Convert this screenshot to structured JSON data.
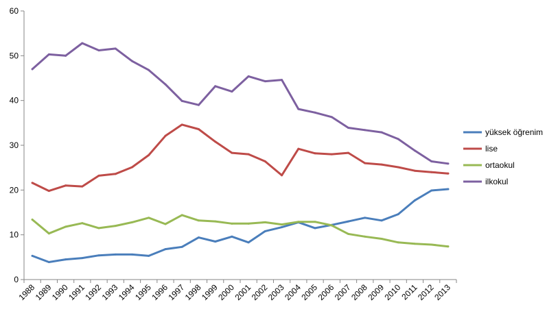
{
  "chart_data": {
    "type": "line",
    "title": "",
    "xlabel": "",
    "ylabel": "",
    "ylim": [
      0,
      60
    ],
    "yticks": [
      "0",
      "10",
      "20",
      "30",
      "40",
      "50",
      "60"
    ],
    "grid": false,
    "legend_position": "right",
    "x": [
      "1988",
      "1989",
      "1990",
      "1991",
      "1992",
      "1993",
      "1994",
      "1995",
      "1996",
      "1997",
      "1998",
      "1999",
      "2000",
      "2001",
      "2002",
      "2003",
      "2004",
      "2005",
      "2006",
      "2007",
      "2008",
      "2009",
      "2010",
      "2011",
      "2012",
      "2013"
    ],
    "series": [
      {
        "name": "yüksek öğrenim",
        "color": "#4a7ebb",
        "values": [
          5.3,
          3.9,
          4.5,
          4.8,
          5.4,
          5.6,
          5.6,
          5.3,
          6.8,
          7.3,
          9.4,
          8.5,
          9.6,
          8.3,
          10.8,
          11.7,
          12.8,
          11.5,
          12.2,
          13.0,
          13.8,
          13.2,
          14.6,
          17.7,
          19.9,
          20.2
        ]
      },
      {
        "name": "lise",
        "color": "#be4b48",
        "values": [
          21.6,
          19.8,
          21.0,
          20.8,
          23.2,
          23.6,
          25.1,
          27.8,
          32.1,
          34.6,
          33.6,
          30.8,
          28.3,
          28.0,
          26.4,
          23.3,
          29.2,
          28.2,
          28.0,
          28.3,
          26.0,
          25.7,
          25.1,
          24.3,
          24.0,
          23.7
        ]
      },
      {
        "name": "ortaokul",
        "color": "#98b954",
        "values": [
          13.4,
          10.3,
          11.8,
          12.6,
          11.5,
          12.0,
          12.8,
          13.8,
          12.4,
          14.4,
          13.2,
          13.0,
          12.5,
          12.5,
          12.8,
          12.3,
          12.9,
          12.9,
          12.1,
          10.2,
          9.6,
          9.1,
          8.3,
          8.0,
          7.8,
          7.4
        ]
      },
      {
        "name": "ilkokul",
        "color": "#7d60a0",
        "values": [
          47.0,
          50.3,
          50.0,
          52.8,
          51.2,
          51.6,
          48.8,
          46.8,
          43.6,
          39.9,
          39.0,
          43.2,
          42.0,
          45.4,
          44.3,
          44.6,
          38.1,
          37.3,
          36.3,
          33.9,
          33.4,
          32.9,
          31.4,
          28.8,
          26.4,
          25.9
        ]
      }
    ]
  }
}
